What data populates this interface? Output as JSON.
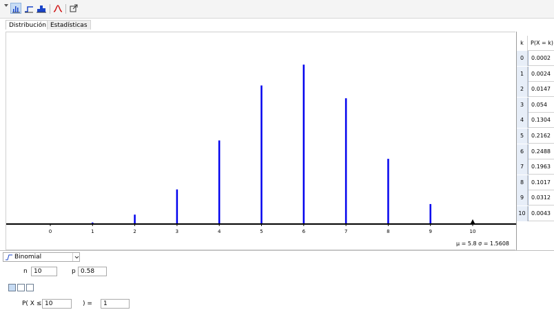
{
  "tabs": [
    "Distribución",
    "Estadísticas"
  ],
  "toolbar": {
    "icons": [
      "menu-triangle-icon",
      "bar-chart-icon",
      "step-chart-icon",
      "histogram-icon",
      "normal-curve-icon",
      "export-icon"
    ]
  },
  "distribution": {
    "selected": "Binomial",
    "param_n_label": "n",
    "param_n_value": "10",
    "param_p_label": "p",
    "param_p_value": "0.58"
  },
  "probability": {
    "left_label": "P( X ≤",
    "input_value": "10",
    "right_label": ") =",
    "result_value": "1"
  },
  "stats_label": "μ = 5.8   σ = 1.5608",
  "table": {
    "header_k": "k",
    "header_p": "P(X = k)",
    "rows": [
      {
        "k": "0",
        "p": "0.0002"
      },
      {
        "k": "1",
        "p": "0.0024"
      },
      {
        "k": "2",
        "p": "0.0147"
      },
      {
        "k": "3",
        "p": "0.054"
      },
      {
        "k": "4",
        "p": "0.1304"
      },
      {
        "k": "5",
        "p": "0.2162"
      },
      {
        "k": "6",
        "p": "0.2488"
      },
      {
        "k": "7",
        "p": "0.1963"
      },
      {
        "k": "8",
        "p": "0.1017"
      },
      {
        "k": "9",
        "p": "0.0312"
      },
      {
        "k": "10",
        "p": "0.0043"
      }
    ]
  },
  "colors": {
    "bar": "#0000ee",
    "axis": "#000000",
    "active_icon_bg": "#c7dcf4"
  },
  "chart_data": {
    "type": "bar",
    "categories": [
      "0",
      "1",
      "2",
      "3",
      "4",
      "5",
      "6",
      "7",
      "8",
      "9",
      "10"
    ],
    "values": [
      0.0002,
      0.0024,
      0.0147,
      0.054,
      0.1304,
      0.2162,
      0.2488,
      0.1963,
      0.1017,
      0.0312,
      0.0043
    ],
    "xlim": [
      -1,
      11
    ],
    "ylim": [
      0,
      0.27
    ],
    "grid": false,
    "marker_at": 10
  }
}
